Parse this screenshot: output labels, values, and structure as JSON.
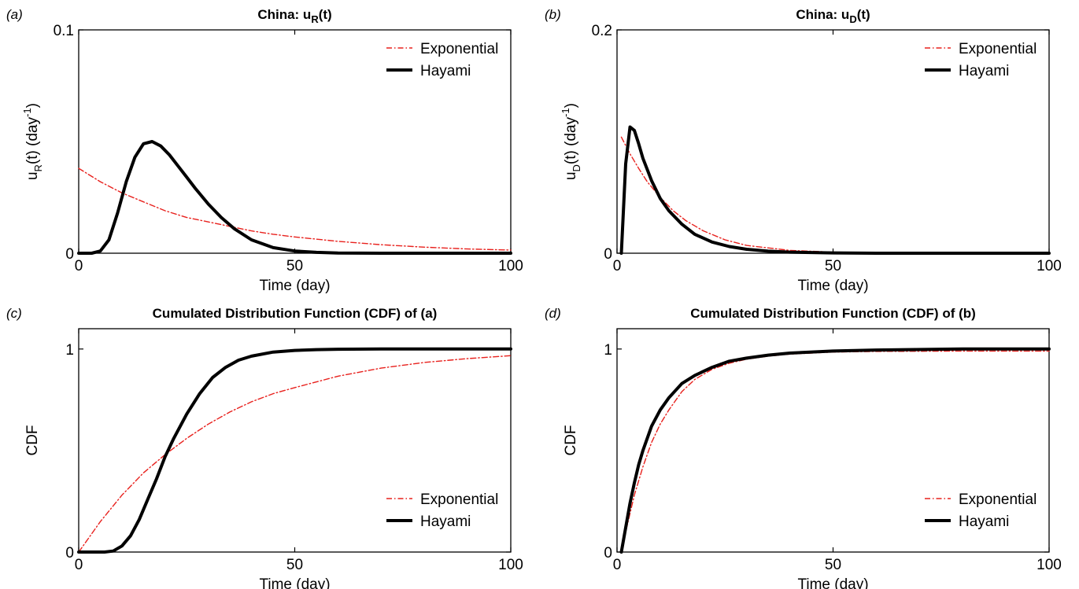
{
  "chart_data": [
    {
      "type": "line",
      "panel": "(a)",
      "title": "China: u_R(t)",
      "title_main": "China: u",
      "title_sub": "R",
      "title_end": "(t)",
      "ylabel_main": "u",
      "ylabel_sub": "R",
      "ylabel_mid": "(t) (day",
      "ylabel_sup": "-1",
      "ylabel_end": ")",
      "xlabel": "Time (day)",
      "xlim": [
        0,
        100
      ],
      "ylim": [
        0,
        0.1
      ],
      "xticks": [
        0,
        50,
        100
      ],
      "xtick_labels": [
        "0",
        "50",
        "100"
      ],
      "yticks": [
        0,
        0.1
      ],
      "ytick_labels": [
        "0",
        "0.1"
      ],
      "legend_position": "top-right",
      "series": [
        {
          "name": "Exponential",
          "color": "#e8211d",
          "style": "dash-dot",
          "x": [
            0,
            5,
            10,
            15,
            20,
            25,
            30,
            35,
            40,
            45,
            50,
            60,
            70,
            80,
            90,
            100
          ],
          "y": [
            0.038,
            0.032,
            0.027,
            0.023,
            0.019,
            0.016,
            0.014,
            0.012,
            0.01,
            0.0085,
            0.0073,
            0.0053,
            0.0038,
            0.0027,
            0.0019,
            0.0014
          ]
        },
        {
          "name": "Hayami",
          "color": "#000000",
          "style": "solid",
          "x": [
            0,
            3,
            5,
            7,
            9,
            11,
            13,
            15,
            17,
            19,
            21,
            23,
            25,
            27,
            30,
            33,
            36,
            40,
            45,
            50,
            55,
            60,
            70,
            80,
            100
          ],
          "y": [
            0,
            0,
            0.001,
            0.006,
            0.018,
            0.032,
            0.043,
            0.049,
            0.05,
            0.048,
            0.044,
            0.039,
            0.034,
            0.029,
            0.022,
            0.016,
            0.011,
            0.006,
            0.0025,
            0.001,
            0.0004,
            0.0001,
            0,
            0,
            0
          ]
        }
      ]
    },
    {
      "type": "line",
      "panel": "(b)",
      "title": "China: u_D(t)",
      "title_main": "China: u",
      "title_sub": "D",
      "title_end": "(t)",
      "ylabel_main": "u",
      "ylabel_sub": "D",
      "ylabel_mid": "(t) (day",
      "ylabel_sup": "-1",
      "ylabel_end": ")",
      "xlabel": "Time (day)",
      "xlim": [
        0,
        100
      ],
      "ylim": [
        0,
        0.2
      ],
      "xticks": [
        0,
        50,
        100
      ],
      "xtick_labels": [
        "0",
        "50",
        "100"
      ],
      "yticks": [
        0,
        0.2
      ],
      "ytick_labels": [
        "0",
        "0.2"
      ],
      "legend_position": "top-right",
      "series": [
        {
          "name": "Exponential",
          "color": "#e8211d",
          "style": "dash-dot",
          "x": [
            1,
            3,
            5,
            7,
            10,
            13,
            16,
            20,
            25,
            30,
            40,
            50,
            60,
            80,
            100
          ],
          "y": [
            0.104,
            0.089,
            0.076,
            0.064,
            0.05,
            0.038,
            0.029,
            0.02,
            0.012,
            0.007,
            0.0025,
            0.001,
            0.0003,
            0,
            0
          ]
        },
        {
          "name": "Hayami",
          "color": "#000000",
          "style": "solid",
          "x": [
            1,
            2,
            3,
            4,
            5,
            6,
            8,
            10,
            12,
            15,
            18,
            22,
            26,
            30,
            35,
            40,
            50,
            60,
            80,
            100
          ],
          "y": [
            0,
            0.08,
            0.113,
            0.11,
            0.098,
            0.085,
            0.065,
            0.049,
            0.038,
            0.026,
            0.017,
            0.01,
            0.006,
            0.0035,
            0.0018,
            0.001,
            0.0003,
            0,
            0,
            0
          ]
        }
      ]
    },
    {
      "type": "line",
      "panel": "(c)",
      "title": "Cumulated Distribution Function (CDF) of (a)",
      "ylabel": "CDF",
      "xlabel": "Time (day)",
      "xlim": [
        0,
        100
      ],
      "ylim": [
        0,
        1.1
      ],
      "xticks": [
        0,
        50,
        100
      ],
      "xtick_labels": [
        "0",
        "50",
        "100"
      ],
      "yticks": [
        0,
        1
      ],
      "ytick_labels": [
        "0",
        "1"
      ],
      "legend_position": "bottom-right",
      "series": [
        {
          "name": "Exponential",
          "color": "#e8211d",
          "style": "dash-dot",
          "x": [
            0,
            5,
            10,
            15,
            20,
            25,
            30,
            35,
            40,
            45,
            50,
            60,
            70,
            80,
            90,
            100
          ],
          "y": [
            0,
            0.15,
            0.28,
            0.39,
            0.48,
            0.56,
            0.63,
            0.69,
            0.74,
            0.78,
            0.81,
            0.866,
            0.906,
            0.934,
            0.953,
            0.967
          ]
        },
        {
          "name": "Hayami",
          "color": "#000000",
          "style": "solid",
          "x": [
            0,
            4,
            6,
            8,
            10,
            12,
            14,
            16,
            18,
            20,
            22,
            25,
            28,
            31,
            34,
            37,
            40,
            45,
            50,
            55,
            60,
            70,
            80,
            100
          ],
          "y": [
            0,
            0,
            0,
            0.005,
            0.03,
            0.08,
            0.16,
            0.26,
            0.36,
            0.47,
            0.56,
            0.68,
            0.78,
            0.86,
            0.91,
            0.945,
            0.965,
            0.985,
            0.993,
            0.997,
            0.999,
            1.0,
            1.0,
            1.0
          ]
        }
      ]
    },
    {
      "type": "line",
      "panel": "(d)",
      "title": "Cumulated Distribution Function (CDF) of (b)",
      "ylabel": "CDF",
      "xlabel": "Time (day)",
      "xlim": [
        0,
        100
      ],
      "ylim": [
        0,
        1.1
      ],
      "xticks": [
        0,
        50,
        100
      ],
      "xtick_labels": [
        "0",
        "50",
        "100"
      ],
      "yticks": [
        0,
        1
      ],
      "ytick_labels": [
        "0",
        "1"
      ],
      "legend_position": "bottom-right",
      "series": [
        {
          "name": "Exponential",
          "color": "#e8211d",
          "style": "dash-dot",
          "x": [
            1,
            2,
            4,
            6,
            8,
            10,
            12,
            15,
            18,
            22,
            26,
            30,
            35,
            40,
            50,
            60,
            80,
            100
          ],
          "y": [
            0,
            0.1,
            0.28,
            0.42,
            0.54,
            0.63,
            0.7,
            0.79,
            0.85,
            0.9,
            0.93,
            0.95,
            0.965,
            0.975,
            0.985,
            0.988,
            0.99,
            0.99
          ]
        },
        {
          "name": "Hayami",
          "color": "#000000",
          "style": "solid",
          "x": [
            1,
            2,
            3,
            4,
            5,
            6,
            8,
            10,
            12,
            15,
            18,
            22,
            26,
            30,
            35,
            40,
            50,
            60,
            80,
            100
          ],
          "y": [
            0,
            0.12,
            0.24,
            0.34,
            0.43,
            0.5,
            0.62,
            0.7,
            0.76,
            0.83,
            0.87,
            0.91,
            0.94,
            0.955,
            0.97,
            0.98,
            0.99,
            0.995,
            1.0,
            1.0
          ]
        }
      ]
    }
  ]
}
